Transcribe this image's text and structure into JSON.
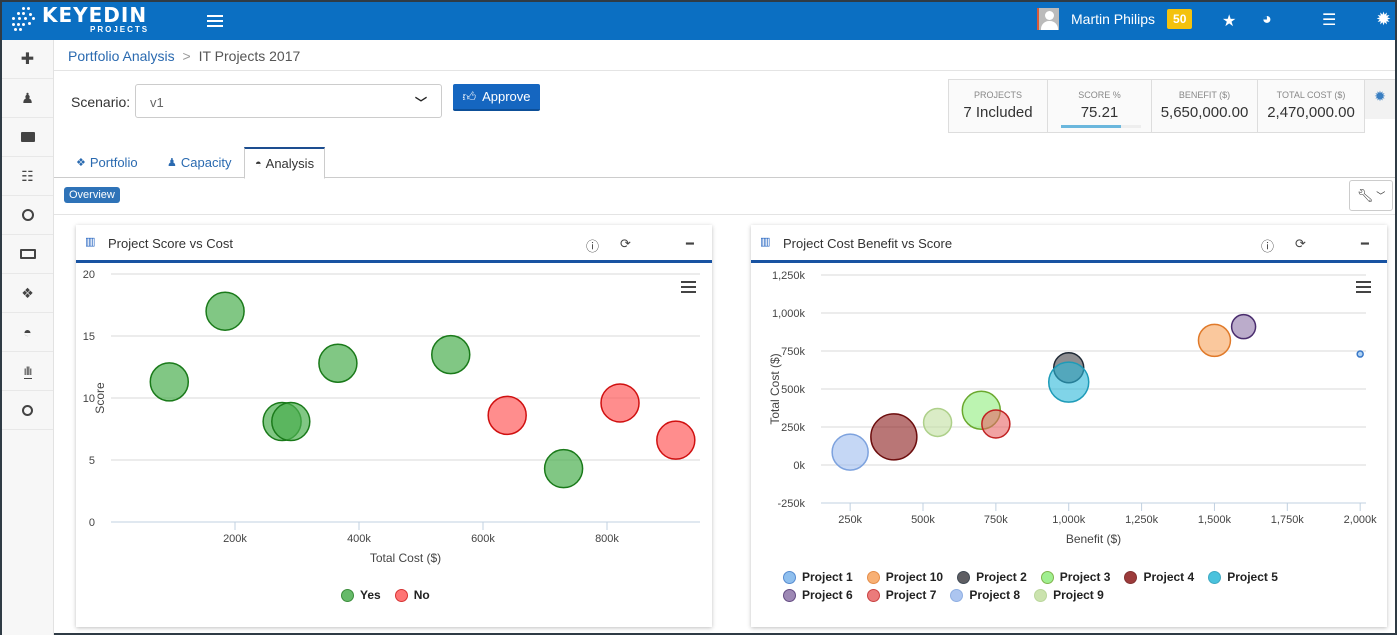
{
  "app": {
    "logo_text": "KEYEDIN",
    "logo_sub": "PROJECTS",
    "user_name": "Martin Philips",
    "notification_count": "50",
    "top_icons": [
      "star-icon",
      "globe-icon",
      "list-icon",
      "gear-icon"
    ]
  },
  "sidebar": {
    "items": [
      {
        "name": "add",
        "glyph": "✚"
      },
      {
        "name": "person",
        "glyph": "♟"
      },
      {
        "name": "briefcase",
        "glyph": "▬"
      },
      {
        "name": "sliders",
        "glyph": "☰"
      },
      {
        "name": "clock",
        "glyph": "◷"
      },
      {
        "name": "money",
        "glyph": "▣"
      },
      {
        "name": "cubes",
        "glyph": "❖"
      },
      {
        "name": "dashboard",
        "glyph": "◔"
      },
      {
        "name": "bar-chart",
        "glyph": "▥"
      },
      {
        "name": "search",
        "glyph": "⚲"
      }
    ]
  },
  "breadcrumb": {
    "parent": "Portfolio Analysis",
    "separator": ">",
    "current": "IT Projects 2017"
  },
  "scenario": {
    "label": "Scenario:",
    "value": "v1"
  },
  "approve_label": "Approve",
  "stats": [
    {
      "label": "PROJECTS",
      "value": "7 Included"
    },
    {
      "label": "SCORE %",
      "value": "75.21",
      "progress": 0.75
    },
    {
      "label": "BENEFIT ($)",
      "value": "5,650,000.00"
    },
    {
      "label": "TOTAL COST ($)",
      "value": "2,470,000.00"
    }
  ],
  "tabs": [
    {
      "label": "Portfolio",
      "active": false
    },
    {
      "label": "Capacity",
      "active": false
    },
    {
      "label": "Analysis",
      "active": true
    }
  ],
  "overview_label": "Overview",
  "colors": {
    "brand": "#0b6fc2",
    "accent": "#1853a2",
    "yes": "#4caf50",
    "no": "#ff5c5c"
  },
  "chart_data": [
    {
      "type": "scatter",
      "title": "Project Score vs Cost",
      "xlabel": "Total Cost ($)",
      "ylabel": "Score",
      "xlim": [
        0,
        950000
      ],
      "ylim": [
        0,
        20
      ],
      "x_ticks": [
        200000,
        400000,
        600000,
        800000
      ],
      "x_tick_labels": [
        "200k",
        "400k",
        "600k",
        "800k"
      ],
      "y_ticks": [
        0,
        5,
        10,
        15,
        20
      ],
      "y_tick_labels": [
        "0",
        "5",
        "10",
        "15",
        "20"
      ],
      "grid": true,
      "legend": "bottom-center",
      "series": [
        {
          "name": "Yes",
          "color": "#4caf50",
          "stroke": "#1a7a1a",
          "points": [
            {
              "x": 94000,
              "y": 11.3
            },
            {
              "x": 184000,
              "y": 17.0
            },
            {
              "x": 276000,
              "y": 8.1
            },
            {
              "x": 290000,
              "y": 8.1
            },
            {
              "x": 366000,
              "y": 12.8
            },
            {
              "x": 548000,
              "y": 13.5
            },
            {
              "x": 730000,
              "y": 4.3
            }
          ]
        },
        {
          "name": "No",
          "color": "#ff5c5c",
          "stroke": "#d01010",
          "points": [
            {
              "x": 639000,
              "y": 8.6
            },
            {
              "x": 821000,
              "y": 9.6
            },
            {
              "x": 911000,
              "y": 6.6
            }
          ]
        }
      ]
    },
    {
      "type": "scatter",
      "title": "Project Cost Benefit vs Score",
      "xlabel": "Benefit ($)",
      "ylabel": "Total Cost ($)",
      "xlim": [
        150000,
        2020000
      ],
      "ylim": [
        -250000,
        1250000
      ],
      "x_ticks": [
        250000,
        500000,
        750000,
        1000000,
        1250000,
        1500000,
        1750000,
        2000000
      ],
      "x_tick_labels": [
        "250k",
        "500k",
        "750k",
        "1,000k",
        "1,250k",
        "1,500k",
        "1,750k",
        "2,000k"
      ],
      "y_ticks": [
        -250000,
        0,
        250000,
        500000,
        750000,
        1000000,
        1250000
      ],
      "y_tick_labels": [
        "-250k",
        "0k",
        "250k",
        "500k",
        "750k",
        "1,000k",
        "1,250k"
      ],
      "grid": true,
      "legend": "bottom-left",
      "series": [
        {
          "name": "Project 1",
          "color": "#7cb5ec",
          "stroke": "#3a78c8",
          "points": [
            {
              "x": 2000000,
              "y": 730000,
              "z": 3
            }
          ]
        },
        {
          "name": "Project 10",
          "color": "#f7a35c",
          "stroke": "#e07a2a",
          "points": [
            {
              "x": 1500000,
              "y": 820000,
              "z": 16
            }
          ]
        },
        {
          "name": "Project 2",
          "color": "#434348",
          "stroke": "#1f2a36",
          "points": [
            {
              "x": 1000000,
              "y": 640000,
              "z": 15
            }
          ]
        },
        {
          "name": "Project 3",
          "color": "#90ed7d",
          "stroke": "#6aa82e",
          "points": [
            {
              "x": 700000,
              "y": 360000,
              "z": 19
            }
          ]
        },
        {
          "name": "Project 4",
          "color": "#8b1a1a",
          "stroke": "#6d0e0e",
          "points": [
            {
              "x": 400000,
              "y": 185000,
              "z": 23
            }
          ]
        },
        {
          "name": "Project 5",
          "color": "#2bb8d8",
          "stroke": "#1e9bb8",
          "points": [
            {
              "x": 1000000,
              "y": 545000,
              "z": 20
            }
          ]
        },
        {
          "name": "Project 6",
          "color": "#8d74a8",
          "stroke": "#4a2d6e",
          "points": [
            {
              "x": 1600000,
              "y": 910000,
              "z": 12
            }
          ]
        },
        {
          "name": "Project 7",
          "color": "#e86565",
          "stroke": "#c02222",
          "points": [
            {
              "x": 750000,
              "y": 270000,
              "z": 14
            }
          ]
        },
        {
          "name": "Project 8",
          "color": "#9ebcee",
          "stroke": "#7da2de",
          "points": [
            {
              "x": 250000,
              "y": 85000,
              "z": 18
            }
          ]
        },
        {
          "name": "Project 9",
          "color": "#c2dfa0",
          "stroke": "#aed08a",
          "points": [
            {
              "x": 550000,
              "y": 280000,
              "z": 14
            }
          ]
        }
      ]
    }
  ]
}
